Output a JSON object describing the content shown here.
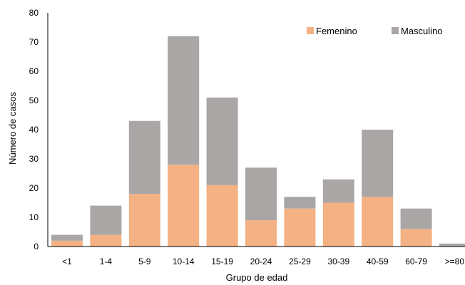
{
  "chart_data": {
    "type": "bar",
    "stacked": true,
    "xlabel": "Grupo de edad",
    "ylabel": "Número de casos",
    "ylim": [
      0,
      80
    ],
    "yticks": [
      0,
      10,
      20,
      30,
      40,
      50,
      60,
      70,
      80
    ],
    "grid": false,
    "legend_position": "top-right",
    "categories": [
      "<1",
      "1-4",
      "5-9",
      "10-14",
      "15-19",
      "20-24",
      "25-29",
      "30-39",
      "40-59",
      "60-79",
      ">=80"
    ],
    "series": [
      {
        "name": "Femenino",
        "color": "#F4B183",
        "values": [
          2,
          4,
          18,
          28,
          21,
          9,
          13,
          15,
          17,
          6,
          0
        ]
      },
      {
        "name": "Masculino",
        "color": "#AAA6A6",
        "values": [
          2,
          10,
          25,
          44,
          30,
          18,
          4,
          8,
          23,
          7,
          1
        ]
      }
    ]
  }
}
